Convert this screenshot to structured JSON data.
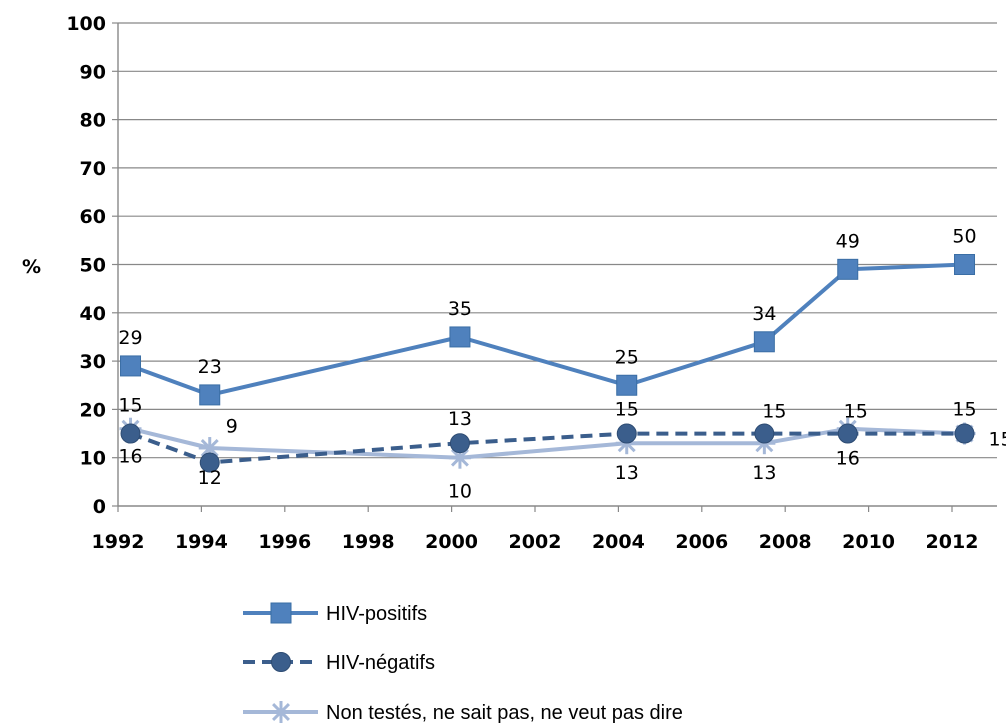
{
  "chart_data": {
    "type": "line",
    "title": "",
    "xlabel": "",
    "ylabel": "%",
    "ylim": [
      0,
      100
    ],
    "yticks": [
      "0",
      "10",
      "20",
      "30",
      "40",
      "50",
      "60",
      "70",
      "80",
      "90",
      "100"
    ],
    "xticks": [
      "1992",
      "1994",
      "1996",
      "1998",
      "2000",
      "2002",
      "2004",
      "2006",
      "2008",
      "2010",
      "2012"
    ],
    "xlim": [
      1992,
      2012
    ],
    "grid": true,
    "legend_position": "bottom",
    "series": [
      {
        "name": "HIV-positifs",
        "color": "#4F81BD",
        "marker": "square",
        "dash": "solid",
        "points": [
          {
            "x": 1992.3,
            "y": 29,
            "label": "29"
          },
          {
            "x": 1994.2,
            "y": 23,
            "label": "23"
          },
          {
            "x": 2000.2,
            "y": 35,
            "label": "35"
          },
          {
            "x": 2004.2,
            "y": 25,
            "label": "25"
          },
          {
            "x": 2007.5,
            "y": 34,
            "label": "34"
          },
          {
            "x": 2009.5,
            "y": 49,
            "label": "49"
          },
          {
            "x": 2012.3,
            "y": 50,
            "label": "50"
          }
        ]
      },
      {
        "name": "HIV-négatifs",
        "color": "#3B5E8C",
        "marker": "circle",
        "dash": "dashed",
        "points": [
          {
            "x": 1992.3,
            "y": 15,
            "label": "15"
          },
          {
            "x": 1994.2,
            "y": 9,
            "label": "9"
          },
          {
            "x": 2000.2,
            "y": 13,
            "label": "13"
          },
          {
            "x": 2004.2,
            "y": 15,
            "label": "15"
          },
          {
            "x": 2007.5,
            "y": 15,
            "label": "15"
          },
          {
            "x": 2009.5,
            "y": 15,
            "label": "15"
          },
          {
            "x": 2012.3,
            "y": 15,
            "label": "15"
          }
        ]
      },
      {
        "name": "Non testés, ne sait pas, ne veut pas dire",
        "color": "#A5B8D8",
        "marker": "star",
        "dash": "solid",
        "points": [
          {
            "x": 1992.3,
            "y": 16,
            "label": "16"
          },
          {
            "x": 1994.2,
            "y": 12,
            "label": "12"
          },
          {
            "x": 2000.2,
            "y": 10,
            "label": "10"
          },
          {
            "x": 2004.2,
            "y": 13,
            "label": "13"
          },
          {
            "x": 2007.5,
            "y": 13,
            "label": "13"
          },
          {
            "x": 2009.5,
            "y": 16,
            "label": "16"
          },
          {
            "x": 2012.3,
            "y": 15,
            "label": "15"
          }
        ]
      }
    ]
  }
}
